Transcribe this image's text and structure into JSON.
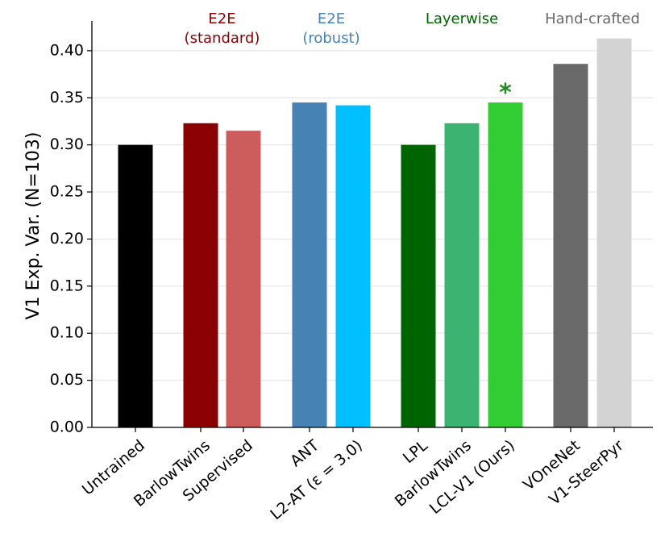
{
  "chart_data": {
    "type": "bar",
    "ylabel": "V1 Exp. Var. (N=103)",
    "ylim": [
      0,
      0.435
    ],
    "yticks": [
      0.0,
      0.05,
      0.1,
      0.15,
      0.2,
      0.25,
      0.3,
      0.35,
      0.4
    ],
    "grid": "horizontal",
    "categories": [
      "Untrained",
      "BarlowTwins",
      "Supervised",
      "ANT",
      "L2-AT (ε = 3.0)",
      "LPL",
      "BarlowTwins",
      "LCL-V1 (Ours)",
      "VOneNet",
      "V1-SteerPyr"
    ],
    "values": [
      0.3,
      0.323,
      0.315,
      0.345,
      0.342,
      0.3,
      0.323,
      0.345,
      0.386,
      0.413
    ],
    "colors": [
      "#000000",
      "#8b0000",
      "#cd5c5c",
      "#4682b4",
      "#00bfff",
      "#006400",
      "#3cb371",
      "#32cd32",
      "#696969",
      "#d3d3d3"
    ],
    "groups": [
      {
        "label_lines": [
          "E2E",
          "(standard)"
        ],
        "color": "#8b0000",
        "bars": [
          1,
          2
        ]
      },
      {
        "label_lines": [
          "E2E",
          "(robust)"
        ],
        "color": "#4682b4",
        "bars": [
          3,
          4
        ]
      },
      {
        "label_lines": [
          "Layerwise"
        ],
        "color": "#006400",
        "bars": [
          5,
          6,
          7
        ]
      },
      {
        "label_lines": [
          "Hand-crafted"
        ],
        "color": "#696969",
        "bars": [
          8,
          9
        ]
      }
    ],
    "annotations": [
      {
        "text": "*",
        "bar": 7,
        "color": "#228b22"
      }
    ]
  }
}
